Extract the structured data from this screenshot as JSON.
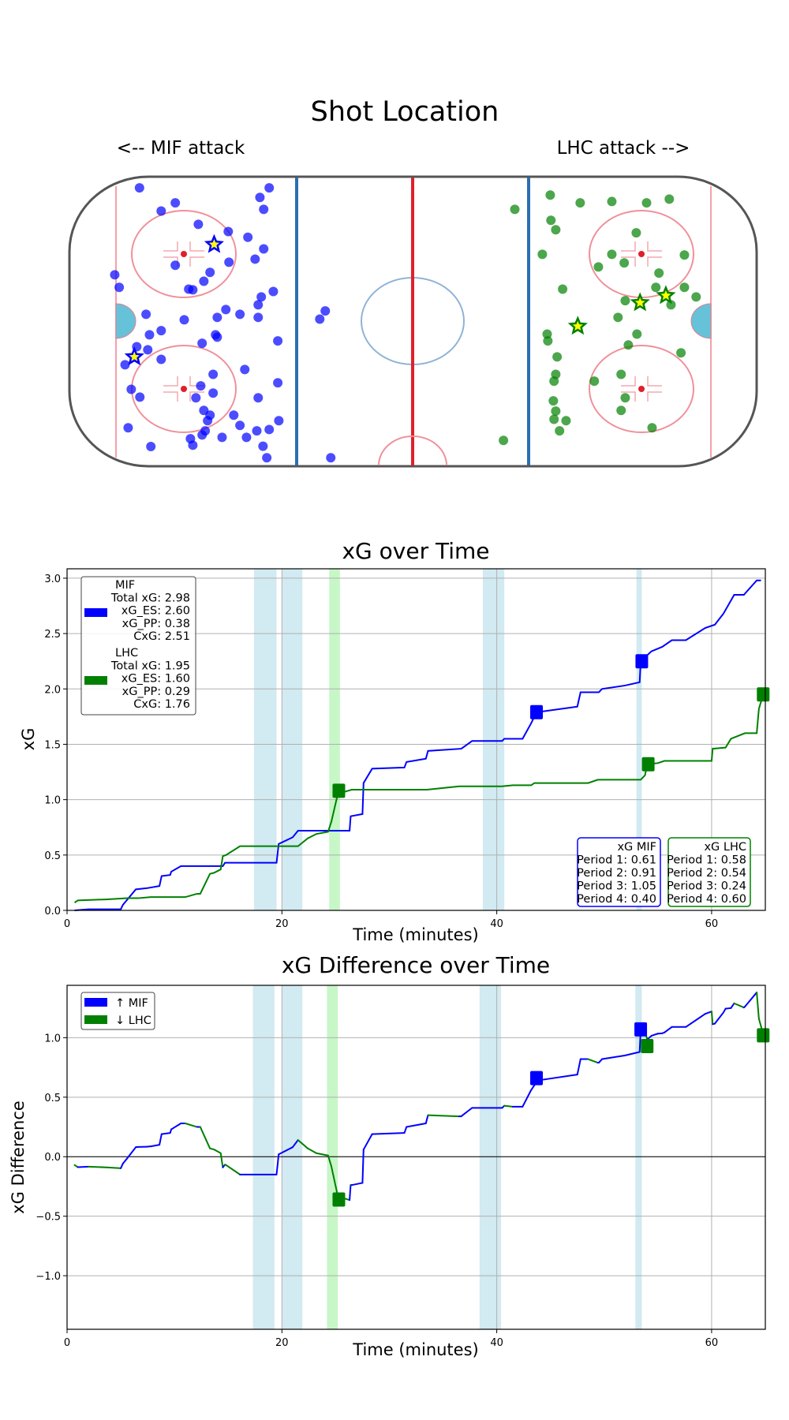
{
  "figure": {
    "title": "Shot Location",
    "left_caption": "<-- MIF attack",
    "right_caption": "LHC attack -->"
  },
  "colors": {
    "mif": "#0000ff",
    "lhc": "#008000",
    "pp_span": "#add8e6",
    "lhc_pp_span": "#90ee90",
    "star_fill": "#ffff00",
    "crease": "#66c2d9"
  },
  "shots": {
    "units": "feet from rink center (x: -100..100, y: -42.5..42.5)",
    "mif": [
      [
        -79.4,
        39.2
      ],
      [
        -41.7,
        39.2
      ],
      [
        -44.4,
        36.4
      ],
      [
        -69.0,
        34.8
      ],
      [
        -73.1,
        32.4
      ],
      [
        -43.3,
        32.9
      ],
      [
        -62.3,
        28.5
      ],
      [
        -53.6,
        26.4
      ],
      [
        -47.9,
        24.7
      ],
      [
        -43.3,
        21.3
      ],
      [
        -69.0,
        16.5
      ],
      [
        -53.4,
        17.4
      ],
      [
        -45.8,
        18.3
      ],
      [
        -58.9,
        14.4
      ],
      [
        -60.7,
        11.8
      ],
      [
        -65.1,
        9.5
      ],
      [
        -63.9,
        9.3
      ],
      [
        -86.6,
        13.7
      ],
      [
        -85.3,
        10.0
      ],
      [
        -40.5,
        8.8
      ],
      [
        -44.0,
        7.2
      ],
      [
        -44.9,
        4.9
      ],
      [
        -54.3,
        3.5
      ],
      [
        -50.2,
        2.1
      ],
      [
        -44.9,
        1.2
      ],
      [
        -56.8,
        1.2
      ],
      [
        -66.4,
        0.5
      ],
      [
        -77.5,
        2.1
      ],
      [
        -25.4,
        3.1
      ],
      [
        -27.0,
        0.7
      ],
      [
        -73.1,
        -2.7
      ],
      [
        -76.5,
        -3.9
      ],
      [
        -57.3,
        -3.9
      ],
      [
        -56.8,
        -4.6
      ],
      [
        -61.2,
        -6.4
      ],
      [
        -39.2,
        -5.7
      ],
      [
        -80.2,
        -7.4
      ],
      [
        -77.0,
        -8.3
      ],
      [
        -73.1,
        -11.1
      ],
      [
        -83.6,
        -12.7
      ],
      [
        -48.8,
        -14.1
      ],
      [
        -58.0,
        -15.5
      ],
      [
        -39.2,
        -18.0
      ],
      [
        -61.6,
        -18.9
      ],
      [
        -81.8,
        -19.9
      ],
      [
        -58.0,
        -21.0
      ],
      [
        -79.3,
        -22.2
      ],
      [
        -63.0,
        -22.4
      ],
      [
        -44.9,
        -22.4
      ],
      [
        -60.7,
        -26.1
      ],
      [
        -58.9,
        -27.5
      ],
      [
        -52.0,
        -27.5
      ],
      [
        -59.6,
        -29.1
      ],
      [
        -38.9,
        -29.1
      ],
      [
        -50.2,
        -30.5
      ],
      [
        -82.7,
        -31.2
      ],
      [
        -60.3,
        -32.1
      ],
      [
        -41.7,
        -31.7
      ],
      [
        -45.3,
        -32.1
      ],
      [
        -61.2,
        -33.3
      ],
      [
        -55.4,
        -34.0
      ],
      [
        -48.3,
        -34.0
      ],
      [
        -64.6,
        -34.4
      ],
      [
        -63.9,
        -36.3
      ],
      [
        -43.5,
        -36.6
      ],
      [
        -76.1,
        -36.7
      ],
      [
        -42.4,
        -40.0
      ],
      [
        -23.8,
        -40.0
      ]
    ],
    "mif_goals": [
      [
        -57.7,
        22.6
      ],
      [
        -80.9,
        -10.4
      ]
    ],
    "lhc": [
      [
        40.0,
        37.1
      ],
      [
        29.7,
        32.9
      ],
      [
        48.7,
        34.8
      ],
      [
        57.9,
        35.2
      ],
      [
        68.0,
        34.8
      ],
      [
        74.6,
        35.9
      ],
      [
        40.2,
        29.7
      ],
      [
        41.6,
        26.9
      ],
      [
        65.0,
        26.0
      ],
      [
        37.7,
        19.7
      ],
      [
        57.9,
        19.7
      ],
      [
        79.0,
        19.5
      ],
      [
        61.5,
        17.2
      ],
      [
        54.0,
        16.0
      ],
      [
        71.6,
        14.2
      ],
      [
        43.6,
        9.5
      ],
      [
        70.7,
        10.0
      ],
      [
        79.0,
        10.0
      ],
      [
        82.4,
        7.2
      ],
      [
        61.8,
        6.1
      ],
      [
        75.1,
        4.9
      ],
      [
        59.7,
        1.2
      ],
      [
        39.1,
        -3.7
      ],
      [
        39.3,
        -5.7
      ],
      [
        65.2,
        -3.7
      ],
      [
        62.7,
        -6.9
      ],
      [
        78.0,
        -9.2
      ],
      [
        42.0,
        -10.4
      ],
      [
        41.6,
        -15.5
      ],
      [
        41.1,
        -17.5
      ],
      [
        52.8,
        -17.5
      ],
      [
        60.6,
        -15.5
      ],
      [
        61.8,
        -22.4
      ],
      [
        40.9,
        -23.3
      ],
      [
        60.6,
        -26.1
      ],
      [
        41.6,
        -26.3
      ],
      [
        41.1,
        -28.7
      ],
      [
        44.6,
        -29.1
      ],
      [
        42.7,
        -32.1
      ],
      [
        69.6,
        -31.2
      ],
      [
        26.4,
        -34.9
      ]
    ],
    "lhc_goals": [
      [
        66.1,
        5.5
      ],
      [
        73.6,
        7.6
      ],
      [
        48.0,
        -1.4
      ]
    ]
  },
  "chart_data": [
    {
      "type": "line",
      "title": "xG over Time",
      "xlabel": "Time (minutes)",
      "ylabel": "xG",
      "xlim": [
        0,
        65
      ],
      "ylim": [
        0,
        3.085
      ],
      "xticks": [
        0,
        20,
        40,
        60
      ],
      "xtick_labels": [
        "0",
        "20",
        "40",
        "60"
      ],
      "yticks": [
        0,
        0.5,
        1.0,
        1.5,
        2.0,
        2.5,
        3.0
      ],
      "ytick_labels": [
        "0.0",
        "0.5",
        "1.0",
        "1.5",
        "2.0",
        "2.5",
        "3.0"
      ],
      "grid": true,
      "legend_placement": "top-left",
      "legend": {
        "mif": [
          "MIF",
          "Total xG: 2.98",
          "xG_ES: 2.60",
          "xG_PP: 0.38",
          "CxG: 2.51"
        ],
        "lhc": [
          "LHC",
          "Total xG: 1.95",
          "xG_ES: 1.60",
          "xG_PP: 0.29",
          "CxG: 1.76"
        ]
      },
      "period_boxes": {
        "mif": [
          "xG MIF",
          "Period 1: 0.61",
          "Period 2: 0.91",
          "Period 3: 1.05",
          "Period 4: 0.40"
        ],
        "lhc": [
          "xG LHC",
          "Period 1: 0.58",
          "Period 2: 0.54",
          "Period 3: 0.24",
          "Period 4: 0.60"
        ]
      },
      "mif_pp_spans": [
        [
          17.4,
          19.5
        ],
        [
          20.0,
          21.9
        ],
        [
          38.7,
          40.7
        ],
        [
          53.0,
          53.5
        ]
      ],
      "lhc_pp_spans": [
        [
          24.4,
          25.4
        ]
      ],
      "series": [
        {
          "name": "MIF",
          "color": "#0000ff",
          "points": [
            [
              0.7,
              0
            ],
            [
              2,
              0.01
            ],
            [
              5,
              0.01
            ],
            [
              5.2,
              0.05
            ],
            [
              6.4,
              0.19
            ],
            [
              7.4,
              0.2
            ],
            [
              8.6,
              0.22
            ],
            [
              8.8,
              0.31
            ],
            [
              9.6,
              0.32
            ],
            [
              9.7,
              0.35
            ],
            [
              10.6,
              0.4
            ],
            [
              14.5,
              0.4
            ],
            [
              14.7,
              0.43
            ],
            [
              19.5,
              0.43
            ],
            [
              19.7,
              0.6
            ],
            [
              21,
              0.66
            ],
            [
              21.5,
              0.72
            ],
            [
              26.3,
              0.72
            ],
            [
              26.4,
              0.85
            ],
            [
              27.5,
              0.87
            ],
            [
              27.6,
              1.15
            ],
            [
              28.4,
              1.28
            ],
            [
              31.4,
              1.29
            ],
            [
              31.6,
              1.34
            ],
            [
              33.4,
              1.37
            ],
            [
              33.6,
              1.44
            ],
            [
              36.7,
              1.46
            ],
            [
              37.7,
              1.53
            ],
            [
              40.5,
              1.53
            ],
            [
              40.7,
              1.55
            ],
            [
              42.4,
              1.55
            ],
            [
              43.2,
              1.69
            ],
            [
              43.7,
              1.79
            ],
            [
              44.5,
              1.8
            ],
            [
              47.5,
              1.84
            ],
            [
              47.8,
              1.97
            ],
            [
              49.5,
              1.97
            ],
            [
              49.8,
              2.0
            ],
            [
              51.9,
              2.03
            ],
            [
              53.3,
              2.06
            ],
            [
              53.4,
              2.25
            ],
            [
              54.4,
              2.34
            ],
            [
              55.4,
              2.38
            ],
            [
              56.3,
              2.44
            ],
            [
              57.6,
              2.44
            ],
            [
              59.4,
              2.55
            ],
            [
              60.3,
              2.58
            ],
            [
              61.1,
              2.68
            ],
            [
              62.1,
              2.85
            ],
            [
              63,
              2.85
            ],
            [
              64.2,
              2.98
            ],
            [
              64.6,
              2.98
            ]
          ]
        },
        {
          "name": "LHC",
          "color": "#008000",
          "points": [
            [
              0.7,
              0.07
            ],
            [
              1,
              0.09
            ],
            [
              3.8,
              0.1
            ],
            [
              5.6,
              0.11
            ],
            [
              6.6,
              0.11
            ],
            [
              7.8,
              0.12
            ],
            [
              11,
              0.12
            ],
            [
              12.1,
              0.15
            ],
            [
              12.4,
              0.15
            ],
            [
              13.3,
              0.33
            ],
            [
              13.7,
              0.34
            ],
            [
              14.3,
              0.37
            ],
            [
              14.5,
              0.49
            ],
            [
              14.8,
              0.5
            ],
            [
              16.1,
              0.58
            ],
            [
              21.5,
              0.58
            ],
            [
              22.4,
              0.65
            ],
            [
              23.2,
              0.69
            ],
            [
              24.3,
              0.71
            ],
            [
              24.6,
              0.8
            ],
            [
              25.2,
              1.05
            ],
            [
              25.8,
              1.07
            ],
            [
              26.5,
              1.09
            ],
            [
              33.5,
              1.09
            ],
            [
              36.5,
              1.12
            ],
            [
              40.5,
              1.12
            ],
            [
              41.5,
              1.13
            ],
            [
              43.2,
              1.13
            ],
            [
              43.5,
              1.15
            ],
            [
              48.5,
              1.15
            ],
            [
              49.4,
              1.18
            ],
            [
              53.4,
              1.18
            ],
            [
              53.8,
              1.22
            ],
            [
              54,
              1.32
            ],
            [
              55,
              1.33
            ],
            [
              55.6,
              1.35
            ],
            [
              60,
              1.35
            ],
            [
              60.1,
              1.46
            ],
            [
              61.3,
              1.47
            ],
            [
              61.8,
              1.55
            ],
            [
              63.1,
              1.6
            ],
            [
              64.2,
              1.6
            ],
            [
              64.4,
              1.82
            ],
            [
              64.8,
              1.95
            ]
          ]
        }
      ],
      "goal_markers": {
        "mif": [
          [
            43.7,
            1.79
          ],
          [
            53.5,
            2.25
          ]
        ],
        "lhc": [
          [
            25.3,
            1.08
          ],
          [
            54.1,
            1.32
          ],
          [
            64.8,
            1.95
          ]
        ]
      }
    },
    {
      "type": "line",
      "title": "xG Difference over Time",
      "xlabel": "Time (minutes)",
      "ylabel": "xG Difference",
      "xlim": [
        0,
        65
      ],
      "ylim": [
        -1.45,
        1.44
      ],
      "xticks": [
        0,
        20,
        40,
        60
      ],
      "xtick_labels": [
        "0",
        "20",
        "40",
        "60"
      ],
      "yticks": [
        -1.0,
        -0.5,
        0.0,
        0.5,
        1.0
      ],
      "ytick_labels": [
        "−1.0",
        "−0.5",
        "0.0",
        "0.5",
        "1.0"
      ],
      "grid": true,
      "legend_placement": "top-left",
      "legend": [
        "↑ MIF",
        "↓ LHC"
      ],
      "mif_pp_spans": [
        [
          17.3,
          19.3
        ],
        [
          20.0,
          21.9
        ],
        [
          38.4,
          40.4
        ],
        [
          52.9,
          53.5
        ]
      ],
      "lhc_pp_spans": [
        [
          24.2,
          25.2
        ]
      ],
      "derived_from": "MIF minus LHC",
      "goal_markers": {
        "mif": [
          [
            43.7,
            0.66
          ],
          [
            53.4,
            1.07
          ]
        ],
        "lhc": [
          [
            25.3,
            -0.36
          ],
          [
            54.0,
            0.93
          ],
          [
            64.8,
            1.02
          ]
        ]
      }
    }
  ]
}
